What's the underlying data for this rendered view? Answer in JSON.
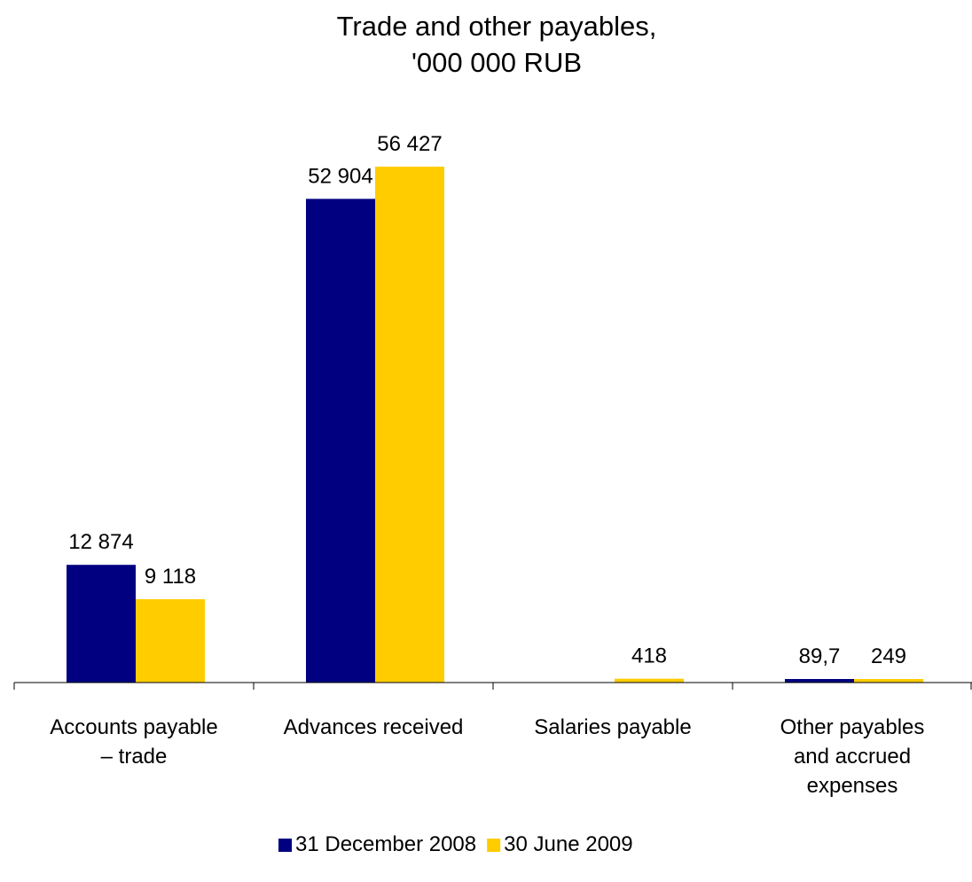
{
  "chart_data": {
    "type": "bar",
    "title_lines": [
      "Trade and other payables,",
      "'000 000 RUB"
    ],
    "categories": [
      [
        "Accounts payable",
        "– trade"
      ],
      [
        "Advances received"
      ],
      [
        "Salaries payable"
      ],
      [
        "Other payables",
        "and accrued",
        "expenses"
      ]
    ],
    "series": [
      {
        "name": "31 December 2008",
        "color": "#000080",
        "values": [
          12874,
          52904,
          0,
          89.7
        ],
        "labels": [
          "12 874",
          "52 904",
          "",
          "89,7"
        ]
      },
      {
        "name": "30 June 2009",
        "color": "#FFCC00",
        "values": [
          9118,
          56427,
          418,
          249
        ],
        "labels": [
          "9 118",
          "56 427",
          "418",
          "249"
        ]
      }
    ],
    "legend_position": "bottom",
    "grid": false,
    "ylim": [
      0,
      56427
    ]
  }
}
